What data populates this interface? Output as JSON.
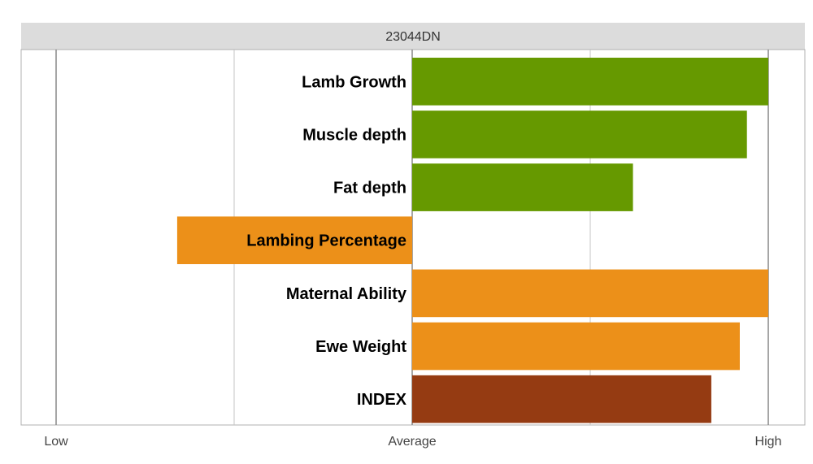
{
  "chart_data": {
    "type": "bar",
    "orientation": "horizontal",
    "title": "23044DN",
    "categories": [
      "Lamb Growth",
      "Muscle depth",
      "Fat depth",
      "Lambing Percentage",
      "Maternal Ability",
      "Ewe Weight",
      "INDEX"
    ],
    "values": [
      1.0,
      0.94,
      0.62,
      -0.66,
      1.0,
      0.92,
      0.84
    ],
    "colors": [
      "#669900",
      "#669900",
      "#669900",
      "#ec9019",
      "#ec9019",
      "#ec9019",
      "#953b12"
    ],
    "xlim": [
      -1,
      1
    ],
    "x_ticks": [
      {
        "value": -1,
        "label": "Low"
      },
      {
        "value": 0,
        "label": "Average"
      },
      {
        "value": 1,
        "label": "High"
      }
    ],
    "grid_values": [
      -1,
      -0.5,
      0,
      0.5,
      1
    ],
    "grid": true,
    "legend": "none"
  },
  "colors": {
    "title_band": "#dcdcdc",
    "grid_major": "#888888",
    "grid_minor": "#c4c4c4",
    "frame": "#b0b0b0"
  }
}
